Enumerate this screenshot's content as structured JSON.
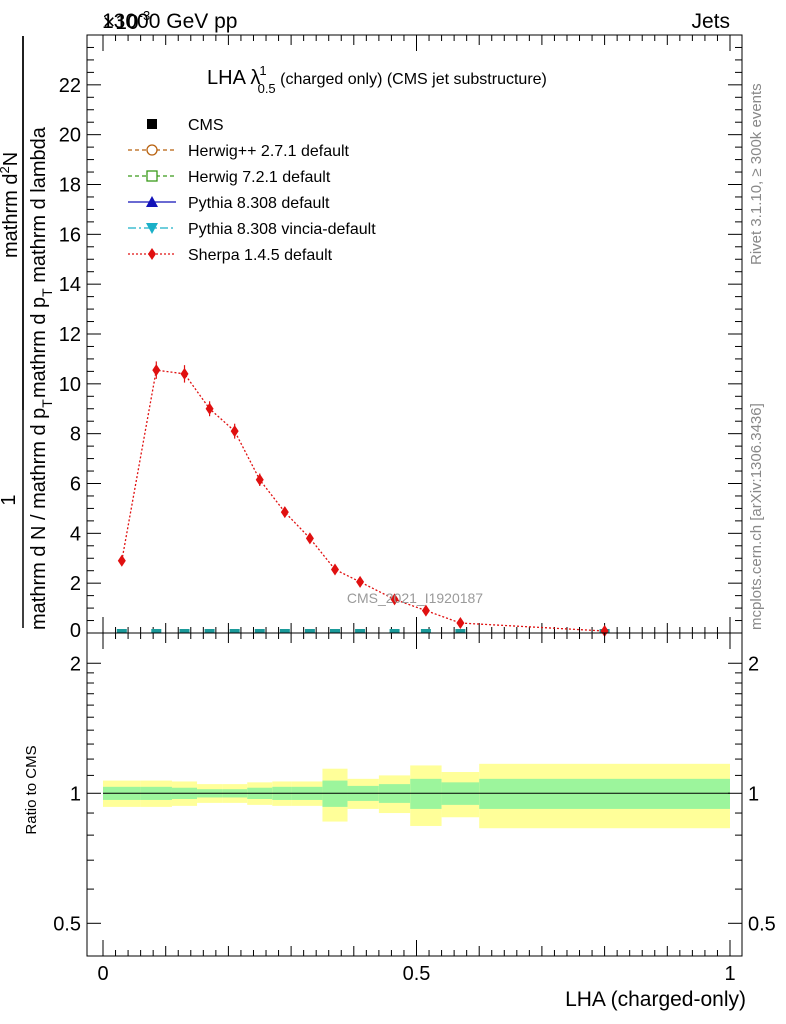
{
  "header": {
    "energy": "13000 GeV pp",
    "category": "Jets",
    "exponent": "×10",
    "exponent_power": "-3"
  },
  "side_labels": {
    "rivet": "Rivet 3.1.10, ≥ 300k events",
    "mcplots": "mcplots.cern.ch [arXiv:1306.3436]"
  },
  "watermark": "CMS_2021_I1920187",
  "chart_data": [
    {
      "type": "line",
      "title": "LHA λ",
      "title_sup": "1",
      "title_sub": "0.5",
      "title_suffix": " (charged only) (CMS jet substructure)",
      "ylabel_num": "1",
      "ylabel_den": "mathrm d N / mathrm d p",
      "ylabel_den_sub": "T",
      "ylabel_num_full": "mathrm d",
      "ylabel_num_sup": "2",
      "ylabel_num_rest": "N",
      "ylabel_den2": "mathrm d p",
      "ylabel_den2_sub": "T",
      "ylabel_den2_rest": " mathrm d lambda",
      "xlim": [
        0,
        1
      ],
      "ylim": [
        0,
        24
      ],
      "yticks": [
        2,
        4,
        6,
        8,
        10,
        12,
        14,
        16,
        18,
        20,
        22
      ],
      "ytick_labels": [
        "2",
        "4",
        "6",
        "8",
        "10",
        "12",
        "14",
        "16",
        "18",
        "20",
        "22"
      ],
      "ytick_zero_label": "0",
      "legend": [
        {
          "name": "CMS",
          "color": "#000000",
          "marker": "square",
          "dash": "none"
        },
        {
          "name": "Herwig++ 2.7.1 default",
          "color": "#b8610e",
          "marker": "circle-open",
          "dash": "4,3"
        },
        {
          "name": "Herwig 7.2.1 default",
          "color": "#3a9a1a",
          "marker": "square-open",
          "dash": "4,3"
        },
        {
          "name": "Pythia 8.308 default",
          "color": "#1212b8",
          "marker": "triangle-up",
          "dash": "none"
        },
        {
          "name": "Pythia 8.308 vincia-default",
          "color": "#1ab0c8",
          "marker": "triangle-down",
          "dash": "8,3,2,3"
        },
        {
          "name": "Sherpa 1.4.5 default",
          "color": "#e01010",
          "marker": "diamond",
          "dash": "2,2"
        }
      ],
      "bin_edges": [
        0,
        0.06,
        0.1,
        0.14,
        0.18,
        0.22,
        0.26,
        0.3,
        0.34,
        0.38,
        0.43,
        0.48,
        0.53,
        0.6,
        1.0
      ],
      "series": [
        {
          "name": "Sherpa 1.4.5 default",
          "x": [
            0.03,
            0.085,
            0.13,
            0.17,
            0.21,
            0.25,
            0.29,
            0.33,
            0.37,
            0.41,
            0.465,
            0.515,
            0.57,
            0.8
          ],
          "values": [
            2.9,
            10.55,
            10.4,
            9.0,
            8.1,
            6.15,
            4.85,
            3.8,
            2.55,
            2.05,
            1.35,
            0.9,
            0.4,
            0.08
          ],
          "errors": [
            0.15,
            0.35,
            0.35,
            0.3,
            0.3,
            0.25,
            0.2,
            0.18,
            0.12,
            0.12,
            0.1,
            0.08,
            0.05,
            0.02
          ]
        },
        {
          "name": "CMS",
          "x": [
            0.03,
            0.085,
            0.13,
            0.17,
            0.21,
            0.25,
            0.29,
            0.33,
            0.37,
            0.41,
            0.465,
            0.515,
            0.57,
            0.8
          ],
          "values": [
            0.0,
            0.0,
            0.0,
            0.0,
            0.0,
            0.0,
            0.0,
            0.0,
            0.0,
            0.0,
            0.0,
            0.0,
            0.0,
            0.0
          ]
        }
      ]
    },
    {
      "type": "area",
      "ylabel": "Ratio to CMS",
      "xlabel": "LHA (charged-only)",
      "xlim": [
        0,
        1
      ],
      "ylim": [
        0.42,
        2.35
      ],
      "yscale": "log",
      "ytick_labels": [
        "0.5",
        "1",
        "2"
      ],
      "yticks": [
        0.5,
        1,
        2
      ],
      "xticks": [
        0,
        0.5,
        1
      ],
      "xtick_labels": [
        "0",
        "0.5",
        "1"
      ],
      "bin_edges": [
        0,
        0.06,
        0.11,
        0.15,
        0.19,
        0.23,
        0.27,
        0.3,
        0.35,
        0.39,
        0.44,
        0.49,
        0.54,
        0.6,
        1.0
      ],
      "stat_band": [
        0.035,
        0.035,
        0.03,
        0.022,
        0.022,
        0.03,
        0.035,
        0.035,
        0.07,
        0.04,
        0.05,
        0.08,
        0.06,
        0.08
      ],
      "total_band": [
        0.07,
        0.07,
        0.065,
        0.05,
        0.05,
        0.06,
        0.065,
        0.065,
        0.14,
        0.08,
        0.1,
        0.16,
        0.12,
        0.17
      ],
      "stat_color": "#9cf59c",
      "total_color": "#ffff99",
      "reference_line": 1
    }
  ]
}
